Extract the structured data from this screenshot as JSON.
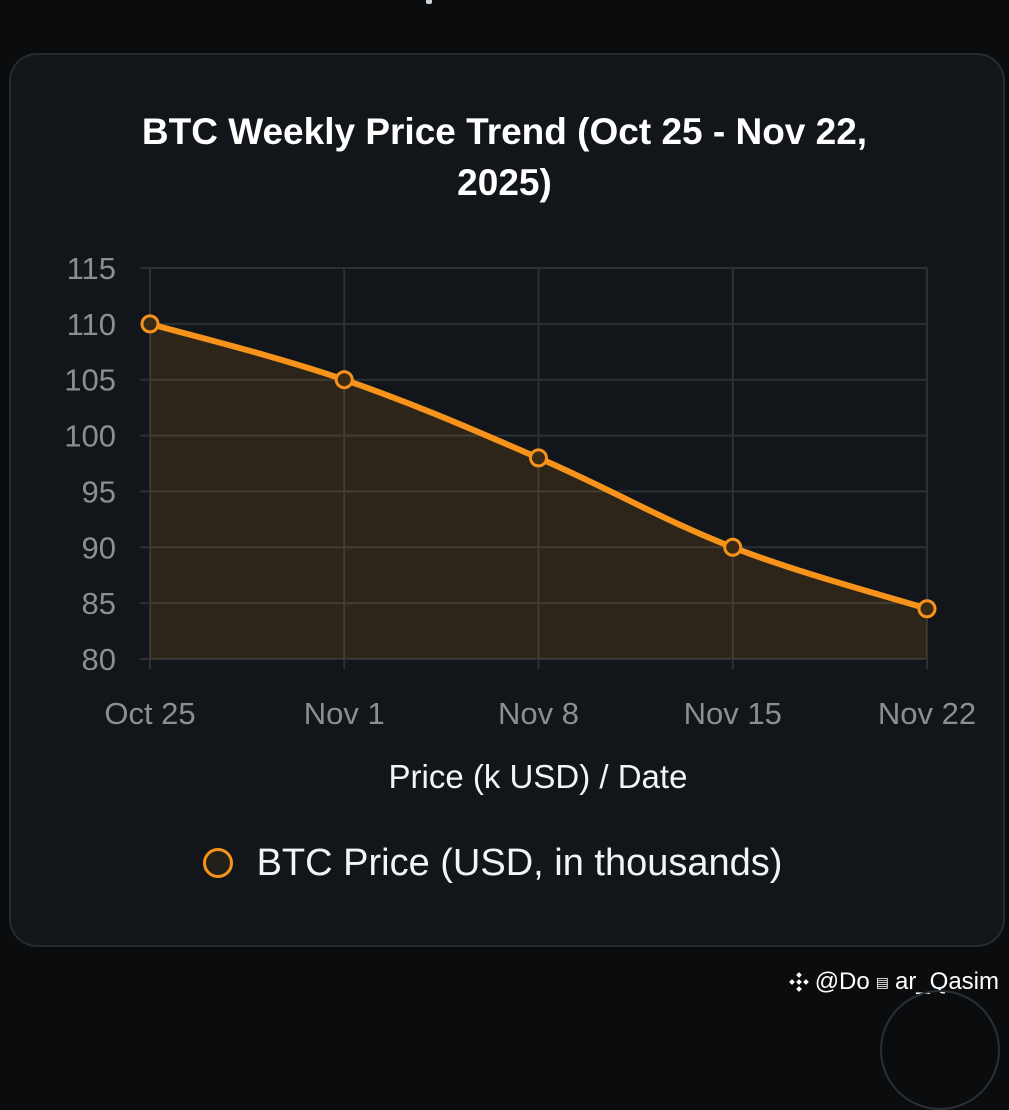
{
  "chart_data": {
    "type": "line",
    "title_lines": [
      "BTC Weekly Price Trend (Oct 25 - Nov 22,",
      "2025)"
    ],
    "categories": [
      "Oct 25",
      "Nov 1",
      "Nov 8",
      "Nov 15",
      "Nov 22"
    ],
    "series": [
      {
        "name": "BTC Price (USD, in thousands)",
        "values": [
          110,
          105,
          98,
          90,
          84.5
        ],
        "color": "#f7931a",
        "fill": true
      }
    ],
    "xlabel": "Price (k USD) / Date",
    "ylabel": "",
    "ylim": [
      80,
      115
    ],
    "yticks": [
      115,
      110,
      105,
      100,
      95,
      90,
      85,
      80
    ],
    "grid": true,
    "legend_position": "bottom"
  },
  "colors": {
    "background": "#0b0c0d",
    "card": "#12161a",
    "line": "#f7931a",
    "grid": "#2b3035",
    "tick_text": "#8a8f94"
  },
  "watermark": {
    "icon": "binance-diamond-icon",
    "handle": "@Do",
    "handle_end": "ar_Qasim"
  }
}
